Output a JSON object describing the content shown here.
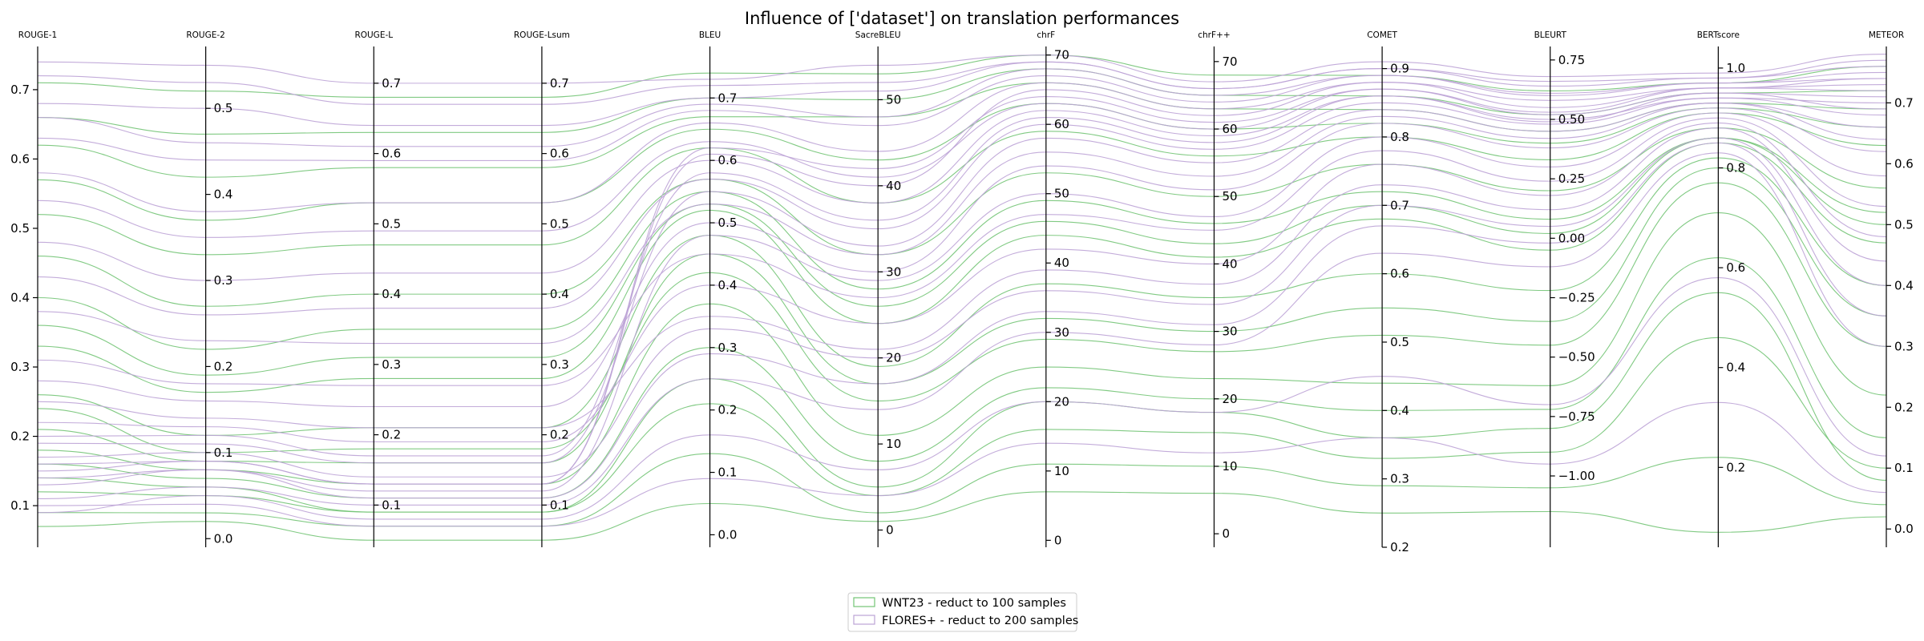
{
  "chart_data": {
    "type": "parallel-coordinates",
    "title": "Influence of ['dataset'] on translation performances",
    "axes": [
      {
        "label": "ROUGE-1",
        "min": 0.04,
        "max": 0.76,
        "ticks": [
          0.1,
          0.2,
          0.3,
          0.4,
          0.5,
          0.6,
          0.7
        ],
        "tick_labels": [
          "0.1",
          "0.2",
          "0.3",
          "0.4",
          "0.5",
          "0.6",
          "0.7"
        ],
        "side": "left"
      },
      {
        "label": "ROUGE-2",
        "min": -0.01,
        "max": 0.57,
        "ticks": [
          0.0,
          0.1,
          0.2,
          0.3,
          0.4,
          0.5
        ],
        "tick_labels": [
          "0.0",
          "0.1",
          "0.2",
          "0.3",
          "0.4",
          "0.5"
        ],
        "side": "right"
      },
      {
        "label": "ROUGE-L",
        "min": 0.04,
        "max": 0.75,
        "ticks": [
          0.1,
          0.2,
          0.3,
          0.4,
          0.5,
          0.6,
          0.7
        ],
        "tick_labels": [
          "0.1",
          "0.2",
          "0.3",
          "0.4",
          "0.5",
          "0.6",
          "0.7"
        ],
        "side": "right"
      },
      {
        "label": "ROUGE-Lsum",
        "min": 0.04,
        "max": 0.75,
        "ticks": [
          0.1,
          0.2,
          0.3,
          0.4,
          0.5,
          0.6,
          0.7
        ],
        "tick_labels": [
          "0.1",
          "0.2",
          "0.3",
          "0.4",
          "0.5",
          "0.6",
          "0.7"
        ],
        "side": "right"
      },
      {
        "label": "BLEU",
        "min": -0.02,
        "max": 0.78,
        "ticks": [
          0.0,
          0.1,
          0.2,
          0.3,
          0.4,
          0.5,
          0.6,
          0.7
        ],
        "tick_labels": [
          "0.0",
          "0.1",
          "0.2",
          "0.3",
          "0.4",
          "0.5",
          "0.6",
          "0.7"
        ],
        "side": "right"
      },
      {
        "label": "SacreBLEU",
        "min": -2,
        "max": 56,
        "ticks": [
          0,
          10,
          20,
          30,
          40,
          50
        ],
        "tick_labels": [
          "0",
          "10",
          "20",
          "30",
          "40",
          "50"
        ],
        "side": "right"
      },
      {
        "label": "chrF",
        "min": -1,
        "max": 71,
        "ticks": [
          0,
          10,
          20,
          30,
          40,
          50,
          60,
          70
        ],
        "tick_labels": [
          "0",
          "10",
          "20",
          "30",
          "40",
          "50",
          "60",
          "70"
        ],
        "side": "right"
      },
      {
        "label": "chrF++",
        "min": -2,
        "max": 72,
        "ticks": [
          0,
          10,
          20,
          30,
          40,
          50,
          60,
          70
        ],
        "tick_labels": [
          "0",
          "10",
          "20",
          "30",
          "40",
          "50",
          "60",
          "70"
        ],
        "side": "right"
      },
      {
        "label": "COMET",
        "min": 0.2,
        "max": 0.93,
        "ticks": [
          0.2,
          0.3,
          0.4,
          0.5,
          0.6,
          0.7,
          0.8,
          0.9
        ],
        "tick_labels": [
          "0.2",
          "0.3",
          "0.4",
          "0.5",
          "0.6",
          "0.7",
          "0.8",
          "0.9"
        ],
        "side": "right"
      },
      {
        "label": "BLEURT",
        "min": -1.3,
        "max": 0.8,
        "ticks": [
          -1.0,
          -0.75,
          -0.5,
          -0.25,
          0.0,
          0.25,
          0.5,
          0.75
        ],
        "tick_labels": [
          "−1.00",
          "−0.75",
          "−0.50",
          "−0.25",
          "0.00",
          "0.25",
          "0.50",
          "0.75"
        ],
        "side": "right"
      },
      {
        "label": "BERTscore",
        "min": 0.04,
        "max": 1.04,
        "ticks": [
          0.2,
          0.4,
          0.6,
          0.8,
          1.0
        ],
        "tick_labels": [
          "0.2",
          "0.4",
          "0.6",
          "0.8",
          "1.0"
        ],
        "side": "right"
      },
      {
        "label": "METEOR",
        "min": -0.03,
        "max": 0.79,
        "ticks": [
          0.0,
          0.1,
          0.2,
          0.3,
          0.4,
          0.5,
          0.6,
          0.7
        ],
        "tick_labels": [
          "0.0",
          "0.1",
          "0.2",
          "0.3",
          "0.4",
          "0.5",
          "0.6",
          "0.7"
        ],
        "side": "right"
      }
    ],
    "series": [
      {
        "name": "WNT23 - reduct to 100 samples",
        "color": "#73c476",
        "samples": [
          [
            0.14,
            0.06,
            0.09,
            0.09,
            0.25,
            5,
            20,
            18,
            0.36,
            -0.8,
            0.55,
            0.08
          ],
          [
            0.62,
            0.42,
            0.58,
            0.58,
            0.67,
            48,
            66,
            63,
            0.84,
            0.45,
            0.93,
            0.69
          ],
          [
            0.21,
            0.09,
            0.16,
            0.16,
            0.45,
            17,
            32,
            30,
            0.55,
            -0.35,
            0.8,
            0.35
          ],
          [
            0.46,
            0.27,
            0.4,
            0.4,
            0.57,
            32,
            53,
            50,
            0.76,
            0.2,
            0.88,
            0.56
          ],
          [
            0.09,
            0.03,
            0.07,
            0.07,
            0.13,
            2,
            11,
            10,
            0.29,
            -1.05,
            0.22,
            0.04
          ],
          [
            0.33,
            0.17,
            0.28,
            0.28,
            0.52,
            24,
            44,
            41,
            0.68,
            -0.05,
            0.85,
            0.47
          ],
          [
            0.71,
            0.52,
            0.68,
            0.68,
            0.74,
            53,
            70,
            68,
            0.89,
            0.62,
            0.97,
            0.76
          ],
          [
            0.18,
            0.08,
            0.13,
            0.13,
            0.37,
            11,
            25,
            23,
            0.44,
            -0.62,
            0.71,
            0.22
          ],
          [
            0.52,
            0.33,
            0.47,
            0.47,
            0.62,
            38,
            59,
            56,
            0.8,
            0.33,
            0.91,
            0.63
          ],
          [
            0.26,
            0.12,
            0.21,
            0.21,
            0.48,
            19,
            37,
            35,
            0.6,
            -0.22,
            0.82,
            0.4
          ],
          [
            0.07,
            0.02,
            0.05,
            0.05,
            0.05,
            1,
            7,
            6,
            0.25,
            -1.15,
            0.07,
            0.02
          ],
          [
            0.4,
            0.22,
            0.35,
            0.35,
            0.55,
            28,
            49,
            46,
            0.72,
            0.08,
            0.86,
            0.52
          ],
          [
            0.12,
            0.05,
            0.09,
            0.09,
            0.21,
            4,
            16,
            15,
            0.33,
            -0.9,
            0.46,
            0.1
          ],
          [
            0.57,
            0.37,
            0.53,
            0.53,
            0.65,
            43,
            63,
            60,
            0.82,
            0.4,
            0.92,
            0.66
          ],
          [
            0.24,
            0.1,
            0.18,
            0.18,
            0.42,
            15,
            29,
            27,
            0.51,
            -0.45,
            0.77,
            0.3
          ],
          [
            0.66,
            0.47,
            0.63,
            0.63,
            0.7,
            50,
            68,
            65,
            0.86,
            0.52,
            0.95,
            0.72
          ],
          [
            0.16,
            0.07,
            0.11,
            0.11,
            0.3,
            8,
            22,
            20,
            0.4,
            -0.72,
            0.62,
            0.15
          ],
          [
            0.36,
            0.19,
            0.31,
            0.31,
            0.53,
            26,
            46,
            43,
            0.7,
            0.02,
            0.86,
            0.5
          ]
        ]
      },
      {
        "name": "FLORES+ - reduct to 200 samples",
        "color": "#bca3d6",
        "samples": [
          [
            0.15,
            0.09,
            0.13,
            0.13,
            0.61,
            40,
            65,
            62,
            0.88,
            0.55,
            0.96,
            0.74
          ],
          [
            0.68,
            0.5,
            0.64,
            0.64,
            0.7,
            51,
            69,
            66,
            0.9,
            0.64,
            0.98,
            0.77
          ],
          [
            0.19,
            0.11,
            0.16,
            0.16,
            0.55,
            33,
            58,
            55,
            0.84,
            0.45,
            0.93,
            0.66
          ],
          [
            0.48,
            0.3,
            0.43,
            0.43,
            0.6,
            38,
            62,
            59,
            0.86,
            0.5,
            0.94,
            0.7
          ],
          [
            0.13,
            0.08,
            0.12,
            0.12,
            0.48,
            29,
            50,
            47,
            0.8,
            0.3,
            0.91,
            0.58
          ],
          [
            0.58,
            0.38,
            0.53,
            0.53,
            0.66,
            44,
            66,
            63,
            0.88,
            0.58,
            0.96,
            0.72
          ],
          [
            0.22,
            0.13,
            0.19,
            0.19,
            0.4,
            24,
            42,
            40,
            0.76,
            0.18,
            0.89,
            0.48
          ],
          [
            0.74,
            0.55,
            0.7,
            0.7,
            0.73,
            54,
            70,
            67,
            0.91,
            0.68,
            0.99,
            0.78
          ],
          [
            0.17,
            0.1,
            0.14,
            0.14,
            0.33,
            20,
            36,
            34,
            0.7,
            0.05,
            0.86,
            0.4
          ],
          [
            0.43,
            0.26,
            0.38,
            0.38,
            0.57,
            35,
            60,
            57,
            0.85,
            0.48,
            0.94,
            0.68
          ],
          [
            0.11,
            0.06,
            0.1,
            0.1,
            0.25,
            14,
            30,
            28,
            0.63,
            -0.12,
            0.83,
            0.3
          ],
          [
            0.63,
            0.44,
            0.59,
            0.59,
            0.68,
            47,
            67,
            64,
            0.89,
            0.6,
            0.97,
            0.74
          ],
          [
            0.28,
            0.16,
            0.24,
            0.24,
            0.5,
            30,
            54,
            51,
            0.82,
            0.38,
            0.92,
            0.62
          ],
          [
            0.09,
            0.05,
            0.08,
            0.08,
            0.16,
            7,
            20,
            18,
            0.45,
            -0.7,
            0.58,
            0.12
          ],
          [
            0.54,
            0.35,
            0.49,
            0.49,
            0.63,
            41,
            63,
            60,
            0.87,
            0.52,
            0.95,
            0.71
          ],
          [
            0.31,
            0.18,
            0.27,
            0.27,
            0.45,
            27,
            47,
            45,
            0.78,
            0.24,
            0.9,
            0.53
          ],
          [
            0.2,
            0.12,
            0.17,
            0.17,
            0.58,
            36,
            61,
            58,
            0.86,
            0.49,
            0.95,
            0.69
          ],
          [
            0.72,
            0.53,
            0.67,
            0.67,
            0.72,
            52,
            69,
            66,
            0.9,
            0.66,
            0.98,
            0.76
          ],
          [
            0.14,
            0.08,
            0.11,
            0.11,
            0.29,
            17,
            33,
            31,
            0.67,
            -0.02,
            0.85,
            0.35
          ],
          [
            0.38,
            0.23,
            0.33,
            0.33,
            0.53,
            32,
            56,
            53,
            0.83,
            0.42,
            0.93,
            0.64
          ],
          [
            0.25,
            0.14,
            0.21,
            0.21,
            0.35,
            21,
            39,
            37,
            0.73,
            0.12,
            0.88,
            0.44
          ],
          [
            0.66,
            0.46,
            0.61,
            0.61,
            0.69,
            48,
            68,
            65,
            0.89,
            0.61,
            0.97,
            0.75
          ],
          [
            0.16,
            0.09,
            0.13,
            0.13,
            0.62,
            42,
            64,
            61,
            0.87,
            0.53,
            0.96,
            0.73
          ],
          [
            0.1,
            0.04,
            0.07,
            0.07,
            0.09,
            4,
            14,
            12,
            0.36,
            -0.95,
            0.33,
            0.06
          ]
        ]
      }
    ],
    "legend": {
      "position": "bottom-center",
      "entries": [
        "WNT23 - reduct to 100 samples",
        "FLORES+ - reduct to 200 samples"
      ]
    },
    "grid": false
  }
}
